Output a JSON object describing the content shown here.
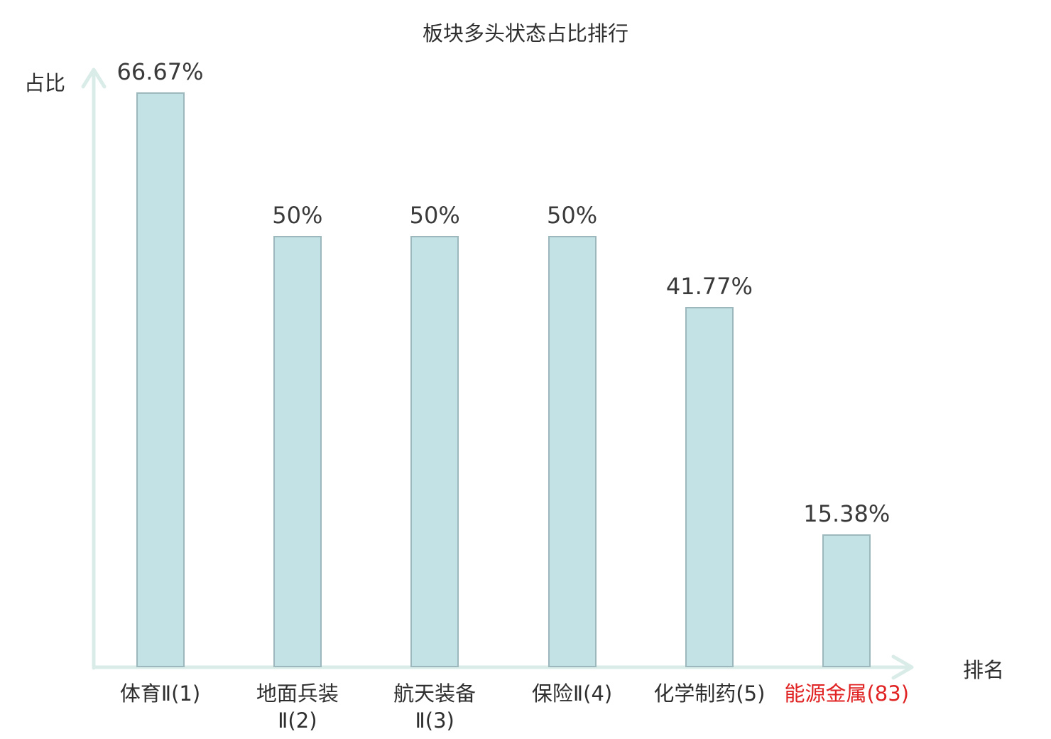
{
  "chart_data": {
    "type": "bar",
    "title": "板块多头状态占比排行",
    "xlabel": "排名",
    "ylabel": "占比",
    "categories": [
      "体育Ⅱ(1)",
      "地面兵装Ⅱ(2)",
      "航天装备Ⅱ(3)",
      "保险Ⅱ(4)",
      "化学制药(5)",
      "能源金属(83)"
    ],
    "values": [
      66.67,
      50,
      50,
      50,
      41.77,
      15.38
    ],
    "value_labels": [
      "66.67%",
      "50%",
      "50%",
      "50%",
      "41.77%",
      "15.38%"
    ],
    "category_label_lines": [
      [
        "体育Ⅱ(1)"
      ],
      [
        "地面兵装",
        "Ⅱ(2)"
      ],
      [
        "航天装备",
        "Ⅱ(3)"
      ],
      [
        "保险Ⅱ(4)"
      ],
      [
        "化学制药(5)"
      ],
      [
        "能源金属(83)"
      ]
    ],
    "highlight_index": 5,
    "ylim": [
      0,
      70
    ],
    "grid": false,
    "legend": null,
    "colors": {
      "bar_fill": "#c3e2e6",
      "bar_border": "#9db8bc",
      "axis": "#daece8",
      "text": "#2f2f2f",
      "value_text": "#3a3a3a",
      "highlight": "#e02222"
    }
  }
}
